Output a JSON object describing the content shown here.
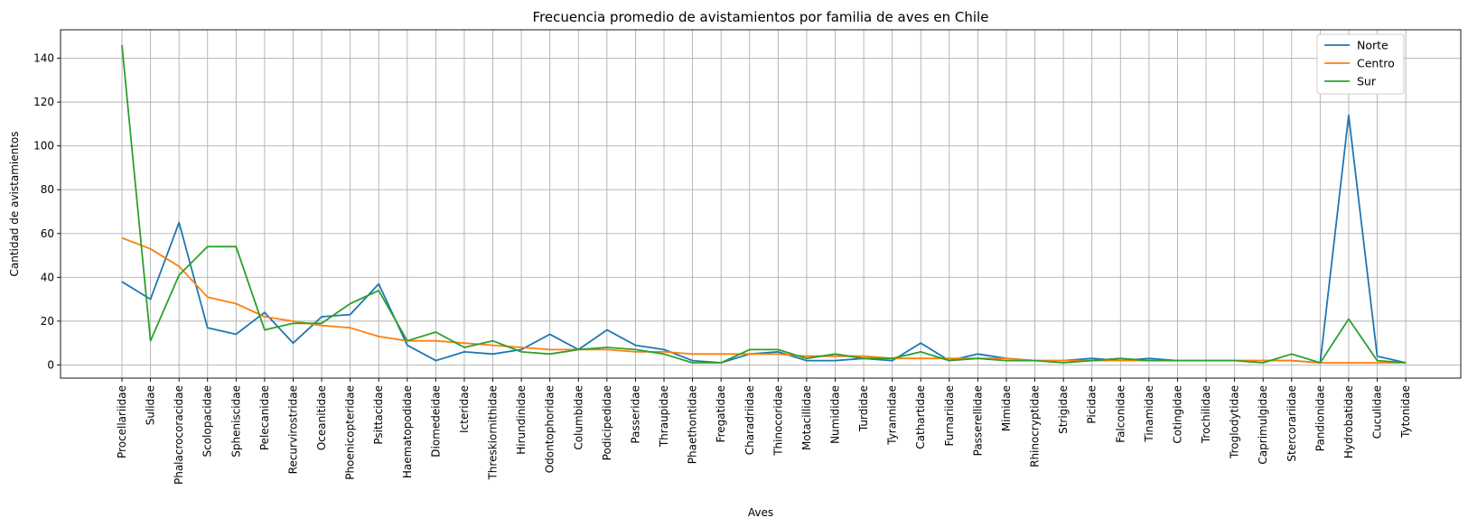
{
  "chart_data": {
    "type": "line",
    "title": "Frecuencia promedio de avistamientos por familia de aves en Chile",
    "xlabel": "Aves",
    "ylabel": "Cantidad de avistamientos",
    "ylim": [
      -6,
      153
    ],
    "yticks": [
      0,
      20,
      40,
      60,
      80,
      100,
      120,
      140
    ],
    "grid": true,
    "legend_position": "top-right",
    "categories": [
      "Procellariidae",
      "Sulidae",
      "Phalacrocoracidae",
      "Scolopacidae",
      "Spheniscidae",
      "Pelecanidae",
      "Recurvirostridae",
      "Oceanitidae",
      "Phoenicopteridae",
      "Psittacidae",
      "Haematopodidae",
      "Diomedeidae",
      "Icteridae",
      "Threskiornithidae",
      "Hirundinidae",
      "Odontophoridae",
      "Columbidae",
      "Podicipedidae",
      "Passeridae",
      "Thraupidae",
      "Phaethontidae",
      "Fregatidae",
      "Charadriidae",
      "Thinocoridae",
      "Motacillidae",
      "Numididae",
      "Turdidae",
      "Tyrannidae",
      "Cathartidae",
      "Furnariidae",
      "Passerellidae",
      "Mimidae",
      "Rhinocryptidae",
      "Strigidae",
      "Picidae",
      "Falconidae",
      "Tinamidae",
      "Cotingidae",
      "Trochilidae",
      "Troglodytidae",
      "Caprimulgidae",
      "Stercorariidae",
      "Pandionidae",
      "Hydrobatidae",
      "Cuculidae",
      "Tytonidae"
    ],
    "series": [
      {
        "name": "Norte",
        "color": "#1f77b4",
        "values": [
          38,
          30,
          65,
          17,
          14,
          24,
          10,
          22,
          23,
          37,
          9,
          2,
          6,
          5,
          7,
          14,
          7,
          16,
          9,
          7,
          2,
          1,
          5,
          6,
          2,
          2,
          3,
          2,
          10,
          2,
          5,
          3,
          2,
          2,
          3,
          2,
          3,
          2,
          2,
          2,
          2,
          2,
          1,
          114,
          4,
          1
        ]
      },
      {
        "name": "Centro",
        "color": "#ff7f0e",
        "values": [
          58,
          53,
          45,
          31,
          28,
          22,
          20,
          18,
          17,
          13,
          11,
          11,
          10,
          9,
          8,
          7,
          7,
          7,
          6,
          6,
          5,
          5,
          5,
          5,
          4,
          4,
          4,
          3,
          3,
          3,
          3,
          3,
          2,
          2,
          2,
          2,
          2,
          2,
          2,
          2,
          2,
          2,
          1,
          1,
          1,
          1
        ]
      },
      {
        "name": "Sur",
        "color": "#2ca02c",
        "values": [
          146,
          11,
          41,
          54,
          54,
          16,
          19,
          19,
          28,
          34,
          11,
          15,
          8,
          11,
          6,
          5,
          7,
          8,
          7,
          5,
          1,
          1,
          7,
          7,
          3,
          5,
          3,
          3,
          6,
          2,
          3,
          2,
          2,
          1,
          2,
          3,
          2,
          2,
          2,
          2,
          1,
          5,
          1,
          21,
          2,
          1
        ]
      }
    ]
  }
}
